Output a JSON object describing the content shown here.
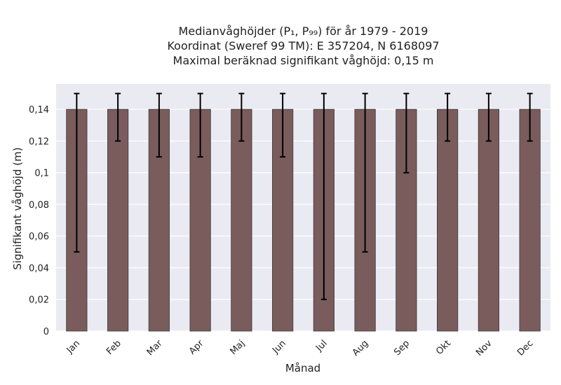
{
  "chart_data": {
    "type": "bar",
    "title_lines": [
      "Medianvåghöjder (P₁, P₉₉) för år 1979 - 2019",
      "Koordinat (Sweref 99 TM): E 357204, N 6168097",
      "Maximal beräknad signifikant våghöjd: 0,15 m"
    ],
    "xlabel": "Månad",
    "ylabel": "Signifikant våghöjd (m)",
    "categories": [
      "Jan",
      "Feb",
      "Mar",
      "Apr",
      "Maj",
      "Jun",
      "Jul",
      "Aug",
      "Sep",
      "Okt",
      "Nov",
      "Dec"
    ],
    "values": [
      0.14,
      0.14,
      0.14,
      0.14,
      0.14,
      0.14,
      0.14,
      0.14,
      0.14,
      0.14,
      0.14,
      0.14
    ],
    "error_low": [
      0.05,
      0.12,
      0.11,
      0.11,
      0.12,
      0.11,
      0.02,
      0.05,
      0.1,
      0.12,
      0.12,
      0.12
    ],
    "error_high": [
      0.15,
      0.15,
      0.15,
      0.15,
      0.15,
      0.15,
      0.15,
      0.15,
      0.15,
      0.15,
      0.15,
      0.15
    ],
    "ylim": [
      0,
      0.156
    ],
    "yticks": [
      0,
      0.02,
      0.04,
      0.06,
      0.08,
      0.1,
      0.12,
      0.14
    ],
    "ytick_labels": [
      "0",
      "0,02",
      "0,04",
      "0,06",
      "0,08",
      "0,1",
      "0,12",
      "0,14"
    ],
    "grid": true,
    "colors": {
      "bar": "#7a5c5c",
      "bar_edge": "#3a3a3a",
      "background": "#eaeaf2",
      "grid": "#ffffff",
      "error": "#000000"
    }
  }
}
